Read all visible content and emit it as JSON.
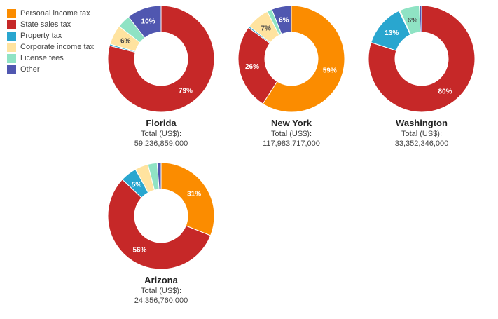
{
  "colors": {
    "Personal income tax": "#fb8c00",
    "State sales tax": "#c62828",
    "Property tax": "#29a6cf",
    "Corporate income tax": "#ffe39f",
    "License fees": "#8fe3c4",
    "Other": "#5057b0"
  },
  "legend": [
    "Personal income tax",
    "State sales tax",
    "Property tax",
    "Corporate income tax",
    "License fees",
    "Other"
  ],
  "total_label": "Total (US$):",
  "chart_data": [
    {
      "type": "pie",
      "donut": true,
      "title": "Florida",
      "total": "59,236,859,000",
      "categories": [
        "Personal income tax",
        "State sales tax",
        "Property tax",
        "Corporate income tax",
        "License fees",
        "Other"
      ],
      "values": [
        0,
        79,
        0.5,
        6,
        4,
        10.5
      ],
      "labels": [
        "",
        "79%",
        "",
        "6%",
        "",
        "10%"
      ]
    },
    {
      "type": "pie",
      "donut": true,
      "title": "New York",
      "total": "117,983,717,000",
      "categories": [
        "Personal income tax",
        "State sales tax",
        "Property tax",
        "Corporate income tax",
        "License fees",
        "Other"
      ],
      "values": [
        59,
        26,
        0.5,
        7,
        1.5,
        6
      ],
      "labels": [
        "59%",
        "26%",
        "",
        "7%",
        "",
        "6%"
      ]
    },
    {
      "type": "pie",
      "donut": true,
      "title": "Washington",
      "total": "33,352,346,000",
      "categories": [
        "Personal income tax",
        "State sales tax",
        "Property tax",
        "Corporate income tax",
        "License fees",
        "Other"
      ],
      "values": [
        0,
        80,
        13,
        0.3,
        6,
        0.7
      ],
      "labels": [
        "",
        "80%",
        "13%",
        "",
        "6%",
        ""
      ]
    },
    {
      "type": "pie",
      "donut": true,
      "title": "Arizona",
      "total": "24,356,760,000",
      "categories": [
        "Personal income tax",
        "State sales tax",
        "Property tax",
        "Corporate income tax",
        "License fees",
        "Other"
      ],
      "values": [
        31,
        56,
        5,
        4,
        2.8,
        1.2
      ],
      "labels": [
        "31%",
        "56%",
        "5%",
        "",
        "",
        ""
      ]
    }
  ]
}
